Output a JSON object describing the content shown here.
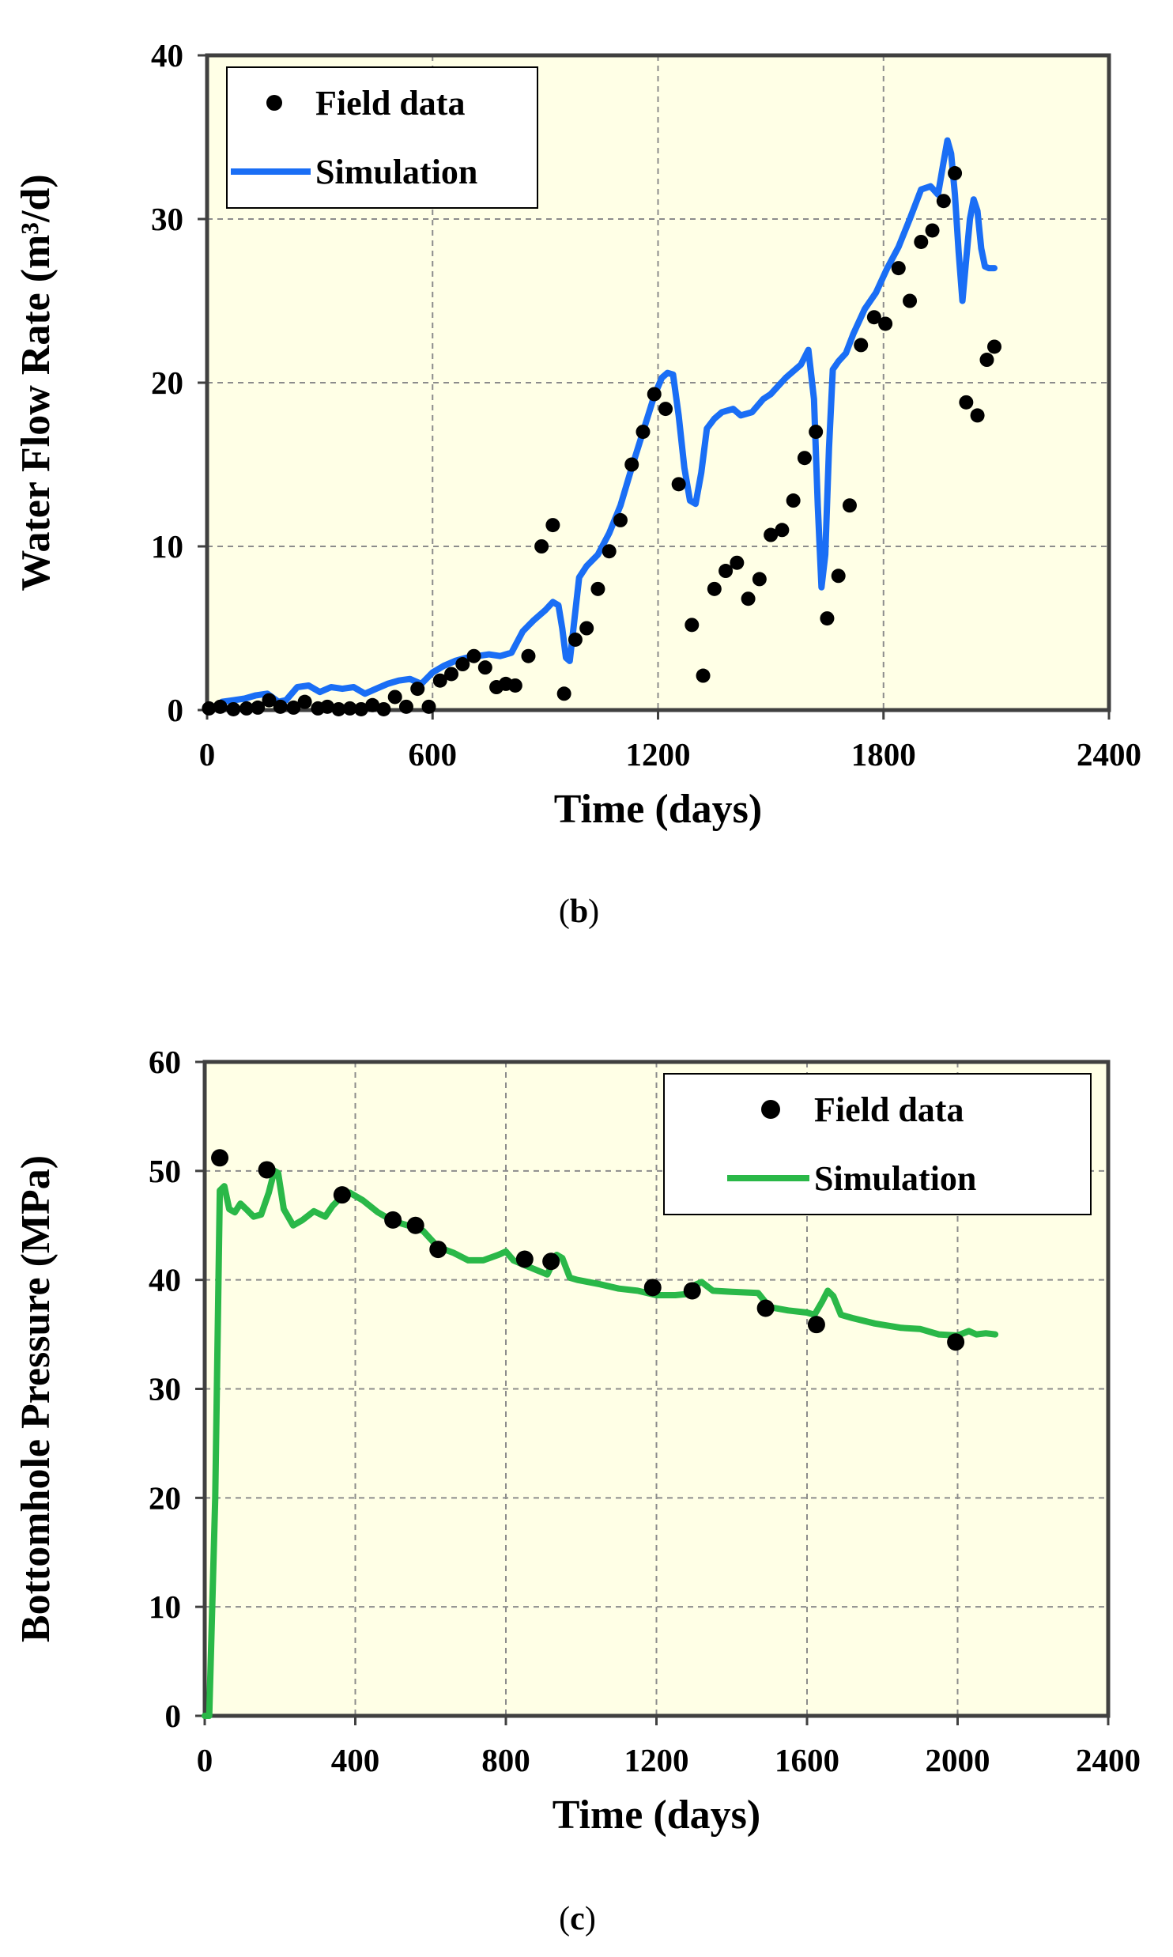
{
  "chart_data": [
    {
      "type": "line+scatter",
      "caption": "b",
      "xlabel": "Time  (days)",
      "ylabel": "Water  Flow  Rate  (m³/d)",
      "xlim": [
        0,
        2400
      ],
      "ylim": [
        0,
        40
      ],
      "xticks": [
        0,
        600,
        1200,
        1800,
        2400
      ],
      "yticks": [
        0,
        10,
        20,
        30,
        40
      ],
      "plot_bg": "#ffffe6",
      "legend": {
        "position": "top-left",
        "entries": [
          "Field data",
          "Simulation"
        ]
      },
      "series": [
        {
          "name": "Field data",
          "kind": "scatter",
          "color": "#000000",
          "x": [
            5,
            35,
            70,
            105,
            135,
            165,
            195,
            230,
            260,
            295,
            320,
            350,
            380,
            410,
            440,
            470,
            500,
            530,
            560,
            590,
            620,
            650,
            680,
            710,
            740,
            770,
            795,
            820,
            855,
            890,
            920,
            950,
            980,
            1010,
            1040,
            1070,
            1100,
            1130,
            1160,
            1190,
            1220,
            1255,
            1290,
            1320,
            1350,
            1380,
            1410,
            1440,
            1470,
            1500,
            1530,
            1560,
            1590,
            1620,
            1650,
            1680,
            1710,
            1740,
            1775,
            1805,
            1840,
            1870,
            1900,
            1930,
            1960,
            1990,
            2020,
            2050,
            2075,
            2095
          ],
          "y": [
            0.1,
            0.2,
            0.05,
            0.1,
            0.15,
            0.6,
            0.2,
            0.15,
            0.5,
            0.1,
            0.2,
            0.05,
            0.1,
            0.05,
            0.3,
            0.05,
            0.8,
            0.2,
            1.3,
            0.2,
            1.8,
            2.2,
            2.8,
            3.3,
            2.6,
            1.4,
            1.6,
            1.5,
            3.3,
            10.0,
            11.3,
            1.0,
            4.3,
            5.0,
            7.4,
            9.7,
            11.6,
            15.0,
            17.0,
            19.3,
            18.4,
            13.8,
            5.2,
            2.1,
            7.4,
            8.5,
            9.0,
            6.8,
            8.0,
            10.7,
            11.0,
            12.8,
            15.4,
            17.0,
            5.6,
            8.2,
            12.5,
            22.3,
            24.0,
            23.6,
            27.0,
            25.0,
            28.6,
            29.3,
            31.1,
            32.8,
            18.8,
            18.0,
            21.4,
            22.2
          ]
        },
        {
          "name": "Simulation",
          "kind": "line",
          "color": "#1a6ef5",
          "x": [
            0,
            20,
            40,
            70,
            100,
            130,
            160,
            190,
            210,
            240,
            270,
            300,
            330,
            360,
            390,
            420,
            450,
            480,
            510,
            540,
            570,
            600,
            630,
            660,
            690,
            720,
            750,
            780,
            810,
            840,
            870,
            900,
            920,
            935,
            945,
            955,
            965,
            975,
            990,
            1010,
            1040,
            1070,
            1100,
            1130,
            1160,
            1190,
            1210,
            1225,
            1240,
            1255,
            1270,
            1285,
            1300,
            1315,
            1330,
            1350,
            1370,
            1400,
            1420,
            1450,
            1480,
            1500,
            1520,
            1540,
            1560,
            1580,
            1600,
            1615,
            1625,
            1635,
            1645,
            1655,
            1665,
            1680,
            1700,
            1720,
            1750,
            1780,
            1810,
            1840,
            1870,
            1900,
            1925,
            1945,
            1960,
            1970,
            1980,
            1990,
            2000,
            2010,
            2020,
            2030,
            2040,
            2050,
            2060,
            2070,
            2080,
            2095
          ],
          "y": [
            0.0,
            0.2,
            0.5,
            0.6,
            0.7,
            0.9,
            1.0,
            0.5,
            0.6,
            1.4,
            1.5,
            1.1,
            1.4,
            1.3,
            1.4,
            1.0,
            1.3,
            1.6,
            1.8,
            1.9,
            1.6,
            2.3,
            2.7,
            3.0,
            3.2,
            3.3,
            3.4,
            3.3,
            3.5,
            4.8,
            5.5,
            6.1,
            6.6,
            6.4,
            5.0,
            3.2,
            3.0,
            5.0,
            8.1,
            8.8,
            9.5,
            10.8,
            12.5,
            14.8,
            17.0,
            19.2,
            20.3,
            20.6,
            20.5,
            18.0,
            14.8,
            12.8,
            12.6,
            14.5,
            17.2,
            17.8,
            18.2,
            18.4,
            18.0,
            18.2,
            19.0,
            19.3,
            19.8,
            20.3,
            20.7,
            21.1,
            22.0,
            19.0,
            12.5,
            7.5,
            9.5,
            16.0,
            20.8,
            21.3,
            21.8,
            23.0,
            24.5,
            25.5,
            27.0,
            28.3,
            30.0,
            31.8,
            32.0,
            31.5,
            33.5,
            34.8,
            34.0,
            31.5,
            28.0,
            25.0,
            27.5,
            30.0,
            31.2,
            30.5,
            28.2,
            27.1,
            27.0,
            27.0
          ]
        }
      ]
    },
    {
      "type": "line+scatter",
      "caption": "c",
      "xlabel": "Time  (days)",
      "ylabel": "Bottomhole  Pressure  (MPa)",
      "xlim": [
        0,
        2400
      ],
      "ylim": [
        0,
        60
      ],
      "xticks": [
        0,
        400,
        800,
        1200,
        1600,
        2000,
        2400
      ],
      "yticks": [
        0,
        10,
        20,
        30,
        40,
        50,
        60
      ],
      "plot_bg": "#ffffe6",
      "legend": {
        "position": "top-right",
        "entries": [
          "Field data",
          "Simulation"
        ]
      },
      "series": [
        {
          "name": "Field data",
          "kind": "scatter",
          "color": "#000000",
          "x": [
            40,
            165,
            365,
            500,
            560,
            620,
            850,
            920,
            1190,
            1295,
            1490,
            1625,
            1995
          ],
          "y": [
            51.2,
            50.1,
            47.8,
            45.5,
            45.0,
            42.8,
            41.9,
            41.7,
            39.3,
            39.0,
            37.4,
            35.9,
            34.3
          ]
        },
        {
          "name": "Simulation",
          "kind": "line",
          "color": "#2ab848",
          "x": [
            0,
            12,
            28,
            40,
            52,
            65,
            80,
            95,
            110,
            130,
            150,
            170,
            185,
            195,
            210,
            235,
            260,
            290,
            320,
            340,
            360,
            385,
            420,
            460,
            500,
            540,
            580,
            620,
            660,
            700,
            740,
            780,
            800,
            820,
            860,
            910,
            935,
            950,
            970,
            990,
            1050,
            1100,
            1150,
            1200,
            1250,
            1280,
            1300,
            1320,
            1350,
            1400,
            1470,
            1500,
            1550,
            1600,
            1620,
            1640,
            1655,
            1670,
            1690,
            1720,
            1780,
            1850,
            1900,
            1950,
            2000,
            2030,
            2050,
            2075,
            2100
          ],
          "y": [
            0.0,
            0.0,
            20.0,
            48.2,
            48.6,
            46.5,
            46.2,
            47.0,
            46.5,
            45.8,
            46.0,
            48.0,
            50.0,
            49.8,
            46.5,
            45.0,
            45.5,
            46.3,
            45.8,
            46.8,
            47.5,
            48.0,
            47.3,
            46.2,
            45.4,
            45.0,
            44.5,
            43.0,
            42.5,
            41.8,
            41.8,
            42.3,
            42.6,
            41.8,
            41.2,
            40.5,
            42.3,
            42.0,
            40.2,
            40.0,
            39.6,
            39.2,
            39.0,
            38.6,
            38.6,
            38.7,
            39.5,
            39.8,
            39.0,
            38.9,
            38.8,
            37.5,
            37.2,
            37.0,
            36.8,
            38.0,
            39.0,
            38.5,
            36.8,
            36.5,
            36.0,
            35.6,
            35.5,
            35.0,
            34.9,
            35.3,
            35.0,
            35.1,
            35.0
          ]
        }
      ]
    }
  ]
}
